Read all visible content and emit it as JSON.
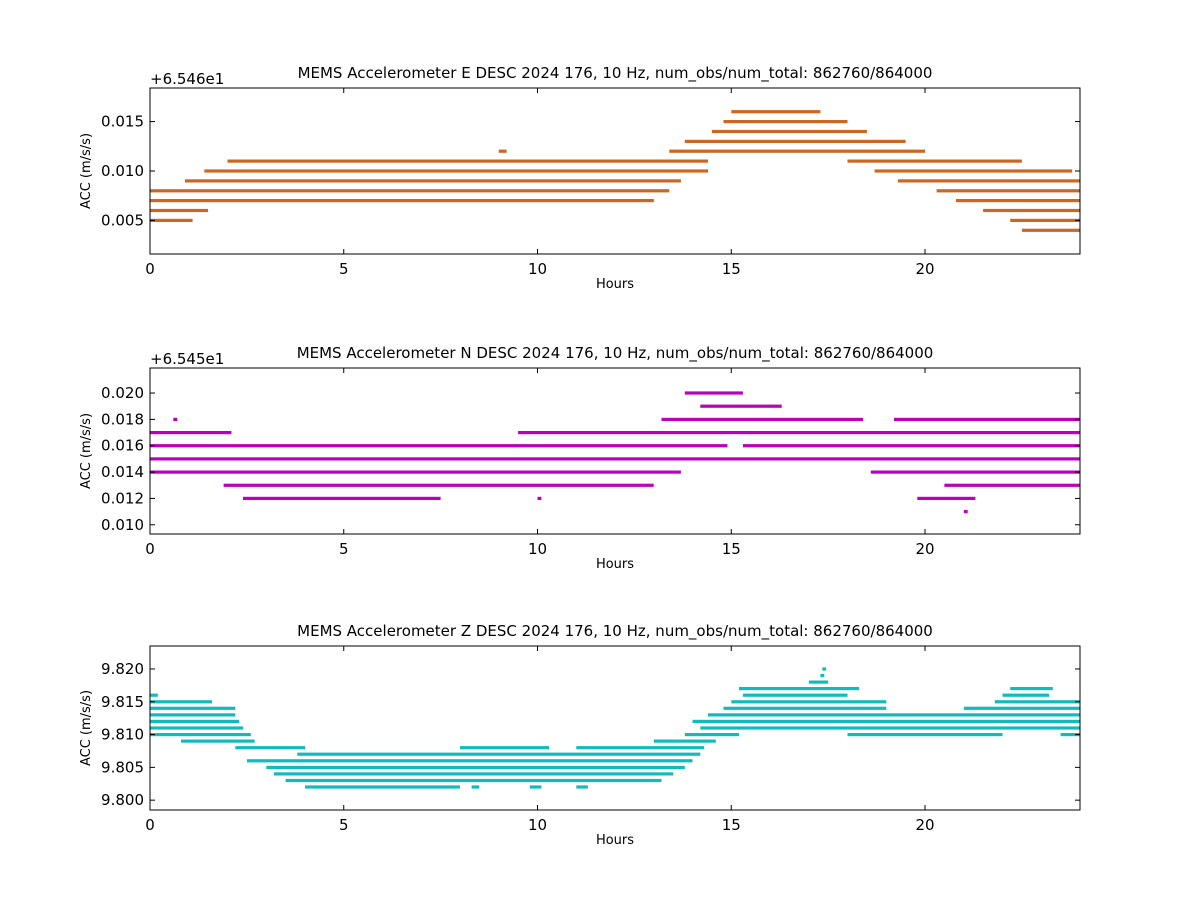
{
  "chart_data": [
    {
      "type": "scatter",
      "title": "MEMS Accelerometer E DESC 2024 176, 10 Hz, num_obs/num_total: 862760/864000",
      "xlabel": "Hours",
      "ylabel": "ACC (m/s/s)",
      "offset_label": "+6.546e1",
      "color": "#cc6622",
      "xlim": [
        0,
        24
      ],
      "ylim": [
        0.0016,
        0.0184
      ],
      "xticks": [
        0,
        5,
        10,
        15,
        20
      ],
      "xtick_labels": [
        "0",
        "5",
        "10",
        "15",
        "20"
      ],
      "yticks": [
        0.005,
        0.01,
        0.015
      ],
      "ytick_labels": [
        "0.005",
        "0.010",
        "0.015"
      ],
      "series": [
        {
          "values": [
            {
              "y": 0.004,
              "ranges": [
                [
                  22.5,
                  24
                ]
              ]
            },
            {
              "y": 0.005,
              "ranges": [
                [
                  0,
                  1.1
                ],
                [
                  22.2,
                  24
                ]
              ]
            },
            {
              "y": 0.006,
              "ranges": [
                [
                  0,
                  1.5
                ],
                [
                  21.5,
                  24
                ]
              ]
            },
            {
              "y": 0.007,
              "ranges": [
                [
                  0,
                  13.0
                ],
                [
                  20.8,
                  24
                ]
              ]
            },
            {
              "y": 0.008,
              "ranges": [
                [
                  0,
                  13.4
                ],
                [
                  20.3,
                  24
                ]
              ]
            },
            {
              "y": 0.009,
              "ranges": [
                [
                  0.9,
                  13.7
                ],
                [
                  19.3,
                  24
                ]
              ]
            },
            {
              "y": 0.01,
              "ranges": [
                [
                  1.4,
                  14.4
                ],
                [
                  18.7,
                  23.8
                ]
              ]
            },
            {
              "y": 0.011,
              "ranges": [
                [
                  2.0,
                  14.4
                ],
                [
                  18.0,
                  22.5
                ]
              ]
            },
            {
              "y": 0.012,
              "ranges": [
                [
                  9.0,
                  9.2
                ],
                [
                  13.4,
                  20.0
                ]
              ]
            },
            {
              "y": 0.013,
              "ranges": [
                [
                  13.8,
                  19.5
                ]
              ]
            },
            {
              "y": 0.014,
              "ranges": [
                [
                  14.5,
                  18.5
                ]
              ]
            },
            {
              "y": 0.015,
              "ranges": [
                [
                  14.8,
                  18.0
                ]
              ]
            },
            {
              "y": 0.016,
              "ranges": [
                [
                  15.0,
                  17.3
                ]
              ]
            }
          ]
        }
      ]
    },
    {
      "type": "scatter",
      "title": "MEMS Accelerometer N DESC 2024 176, 10 Hz, num_obs/num_total: 862760/864000",
      "xlabel": "Hours",
      "ylabel": "ACC (m/s/s)",
      "offset_label": "+6.545e1",
      "color": "#bb00bb",
      "xlim": [
        0,
        24
      ],
      "ylim": [
        0.0093,
        0.0219
      ],
      "xticks": [
        0,
        5,
        10,
        15,
        20
      ],
      "xtick_labels": [
        "0",
        "5",
        "10",
        "15",
        "20"
      ],
      "yticks": [
        0.01,
        0.012,
        0.014,
        0.016,
        0.018,
        0.02
      ],
      "ytick_labels": [
        "0.010",
        "0.012",
        "0.014",
        "0.016",
        "0.018",
        "0.020"
      ],
      "series": [
        {
          "values": [
            {
              "y": 0.011,
              "ranges": [
                [
                  21.0,
                  21.1
                ]
              ]
            },
            {
              "y": 0.012,
              "ranges": [
                [
                  2.4,
                  7.5
                ],
                [
                  10.0,
                  10.1
                ],
                [
                  19.8,
                  21.3
                ]
              ]
            },
            {
              "y": 0.013,
              "ranges": [
                [
                  1.9,
                  13.0
                ],
                [
                  20.5,
                  24
                ]
              ]
            },
            {
              "y": 0.014,
              "ranges": [
                [
                  0,
                  13.7
                ],
                [
                  18.6,
                  24
                ]
              ]
            },
            {
              "y": 0.015,
              "ranges": [
                [
                  0,
                  24
                ]
              ]
            },
            {
              "y": 0.016,
              "ranges": [
                [
                  0,
                  14.9
                ],
                [
                  15.3,
                  24
                ]
              ]
            },
            {
              "y": 0.017,
              "ranges": [
                [
                  0,
                  2.1
                ],
                [
                  9.5,
                  24
                ]
              ]
            },
            {
              "y": 0.018,
              "ranges": [
                [
                  0.6,
                  0.7
                ],
                [
                  13.2,
                  18.4
                ],
                [
                  19.2,
                  24
                ]
              ]
            },
            {
              "y": 0.019,
              "ranges": [
                [
                  14.2,
                  16.3
                ]
              ]
            },
            {
              "y": 0.02,
              "ranges": [
                [
                  13.8,
                  15.3
                ]
              ]
            }
          ]
        }
      ]
    },
    {
      "type": "scatter",
      "title": "MEMS Accelerometer Z DESC 2024 176, 10 Hz, num_obs/num_total: 862760/864000",
      "xlabel": "Hours",
      "ylabel": "ACC (m/s/s)",
      "offset_label": "",
      "color": "#11bbbb",
      "xlim": [
        0,
        24
      ],
      "ylim": [
        9.7985,
        9.8235
      ],
      "xticks": [
        0,
        5,
        10,
        15,
        20
      ],
      "xtick_labels": [
        "0",
        "5",
        "10",
        "15",
        "20"
      ],
      "yticks": [
        9.8,
        9.805,
        9.81,
        9.815,
        9.82
      ],
      "ytick_labels": [
        "9.800",
        "9.805",
        "9.810",
        "9.815",
        "9.820"
      ],
      "series": [
        {
          "values": [
            {
              "y": 9.802,
              "ranges": [
                [
                  4.0,
                  8.0
                ],
                [
                  8.3,
                  8.5
                ],
                [
                  9.8,
                  10.1
                ],
                [
                  11.0,
                  11.3
                ]
              ]
            },
            {
              "y": 9.803,
              "ranges": [
                [
                  3.5,
                  13.2
                ]
              ]
            },
            {
              "y": 9.804,
              "ranges": [
                [
                  3.2,
                  13.5
                ]
              ]
            },
            {
              "y": 9.805,
              "ranges": [
                [
                  3.0,
                  13.8
                ]
              ]
            },
            {
              "y": 9.806,
              "ranges": [
                [
                  2.5,
                  14.0
                ]
              ]
            },
            {
              "y": 9.807,
              "ranges": [
                [
                  3.8,
                  14.2
                ]
              ]
            },
            {
              "y": 9.808,
              "ranges": [
                [
                  2.2,
                  4.0
                ],
                [
                  8.0,
                  10.3
                ],
                [
                  11.0,
                  14.3
                ]
              ]
            },
            {
              "y": 9.809,
              "ranges": [
                [
                  0.8,
                  2.7
                ],
                [
                  13.0,
                  14.6
                ]
              ]
            },
            {
              "y": 9.81,
              "ranges": [
                [
                  0,
                  2.6
                ],
                [
                  13.8,
                  15.2
                ],
                [
                  18.0,
                  22.0
                ],
                [
                  23.5,
                  24
                ]
              ]
            },
            {
              "y": 9.811,
              "ranges": [
                [
                  0,
                  2.4
                ],
                [
                  14.2,
                  24
                ]
              ]
            },
            {
              "y": 9.812,
              "ranges": [
                [
                  0,
                  2.3
                ],
                [
                  14.0,
                  24
                ]
              ]
            },
            {
              "y": 9.813,
              "ranges": [
                [
                  0,
                  2.2
                ],
                [
                  14.4,
                  24
                ]
              ]
            },
            {
              "y": 9.814,
              "ranges": [
                [
                  0,
                  2.2
                ],
                [
                  14.8,
                  19.0
                ],
                [
                  21.0,
                  24
                ]
              ]
            },
            {
              "y": 9.815,
              "ranges": [
                [
                  0,
                  1.6
                ],
                [
                  15.0,
                  19.0
                ],
                [
                  21.8,
                  24
                ]
              ]
            },
            {
              "y": 9.816,
              "ranges": [
                [
                  0,
                  0.2
                ],
                [
                  15.3,
                  18.0
                ],
                [
                  22.0,
                  23.2
                ]
              ]
            },
            {
              "y": 9.817,
              "ranges": [
                [
                  15.2,
                  18.3
                ],
                [
                  22.2,
                  23.3
                ]
              ]
            },
            {
              "y": 9.818,
              "ranges": [
                [
                  17.0,
                  17.5
                ]
              ]
            },
            {
              "y": 9.819,
              "ranges": [
                [
                  17.3,
                  17.4
                ]
              ]
            },
            {
              "y": 9.82,
              "ranges": [
                [
                  17.35,
                  17.45
                ]
              ]
            }
          ]
        }
      ]
    }
  ]
}
